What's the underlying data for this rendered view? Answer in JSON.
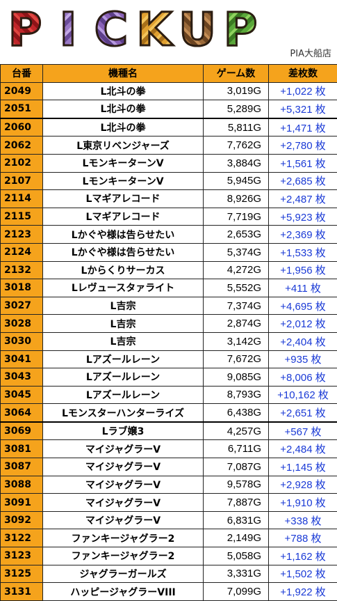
{
  "logo": {
    "letters": [
      "P",
      "I",
      "C",
      "K",
      "U",
      "P"
    ]
  },
  "store_name": "PIA大船店",
  "table": {
    "headers": {
      "no": "台番",
      "name": "機種名",
      "games": "ゲーム数",
      "diff": "差枚数"
    },
    "rows": [
      {
        "no": "2049",
        "name": "L北斗の拳",
        "games": "3,019G",
        "diff": "+1,022 枚"
      },
      {
        "no": "2051",
        "name": "L北斗の拳",
        "games": "5,289G",
        "diff": "+5,321 枚"
      },
      {
        "no": "2060",
        "name": "L北斗の拳",
        "games": "5,811G",
        "diff": "+1,471 枚"
      },
      {
        "no": "2062",
        "name": "L東京リベンジャーズ",
        "games": "7,762G",
        "diff": "+2,780 枚"
      },
      {
        "no": "2102",
        "name": "LモンキーターンV",
        "games": "3,884G",
        "diff": "+1,561 枚"
      },
      {
        "no": "2107",
        "name": "LモンキーターンV",
        "games": "5,945G",
        "diff": "+2,685 枚"
      },
      {
        "no": "2114",
        "name": "Lマギアレコード",
        "games": "8,926G",
        "diff": "+2,487 枚"
      },
      {
        "no": "2115",
        "name": "Lマギアレコード",
        "games": "7,719G",
        "diff": "+5,923 枚"
      },
      {
        "no": "2123",
        "name": "Lかぐや様は告らせたい",
        "games": "2,653G",
        "diff": "+2,369 枚"
      },
      {
        "no": "2124",
        "name": "Lかぐや様は告らせたい",
        "games": "5,374G",
        "diff": "+1,533 枚"
      },
      {
        "no": "2132",
        "name": "Lからくりサーカス",
        "games": "4,272G",
        "diff": "+1,956 枚"
      },
      {
        "no": "3018",
        "name": "Lレヴュースタァライト",
        "games": "5,552G",
        "diff": "+411 枚"
      },
      {
        "no": "3027",
        "name": "L吉宗",
        "games": "7,374G",
        "diff": "+4,695 枚"
      },
      {
        "no": "3028",
        "name": "L吉宗",
        "games": "2,874G",
        "diff": "+2,012 枚"
      },
      {
        "no": "3030",
        "name": "L吉宗",
        "games": "3,142G",
        "diff": "+2,404 枚"
      },
      {
        "no": "3041",
        "name": "Lアズールレーン",
        "games": "7,672G",
        "diff": "+935 枚"
      },
      {
        "no": "3043",
        "name": "Lアズールレーン",
        "games": "9,085G",
        "diff": "+8,006 枚"
      },
      {
        "no": "3045",
        "name": "Lアズールレーン",
        "games": "8,793G",
        "diff": "+10,162 枚"
      },
      {
        "no": "3064",
        "name": "Lモンスターハンターライズ",
        "games": "6,438G",
        "diff": "+2,651 枚"
      },
      {
        "no": "3069",
        "name": "Lラブ嬢3",
        "games": "4,257G",
        "diff": "+567 枚"
      },
      {
        "no": "3081",
        "name": "マイジャグラーV",
        "games": "6,711G",
        "diff": "+2,484 枚"
      },
      {
        "no": "3087",
        "name": "マイジャグラーV",
        "games": "7,087G",
        "diff": "+1,145 枚"
      },
      {
        "no": "3088",
        "name": "マイジャグラーV",
        "games": "9,578G",
        "diff": "+2,928 枚"
      },
      {
        "no": "3091",
        "name": "マイジャグラーV",
        "games": "7,887G",
        "diff": "+1,910 枚"
      },
      {
        "no": "3092",
        "name": "マイジャグラーV",
        "games": "6,831G",
        "diff": "+338 枚"
      },
      {
        "no": "3122",
        "name": "ファンキージャグラー2",
        "games": "2,149G",
        "diff": "+788 枚"
      },
      {
        "no": "3123",
        "name": "ファンキージャグラー2",
        "games": "5,058G",
        "diff": "+1,162 枚"
      },
      {
        "no": "3125",
        "name": "ジャグラーガールズ",
        "games": "3,331G",
        "diff": "+1,502 枚"
      },
      {
        "no": "3131",
        "name": "ハッピージャグラーVIII",
        "games": "7,099G",
        "diff": "+1,922 枚"
      }
    ]
  },
  "colors": {
    "header_bg": "#f5a31c",
    "diff_text": "#1a3ad6"
  }
}
